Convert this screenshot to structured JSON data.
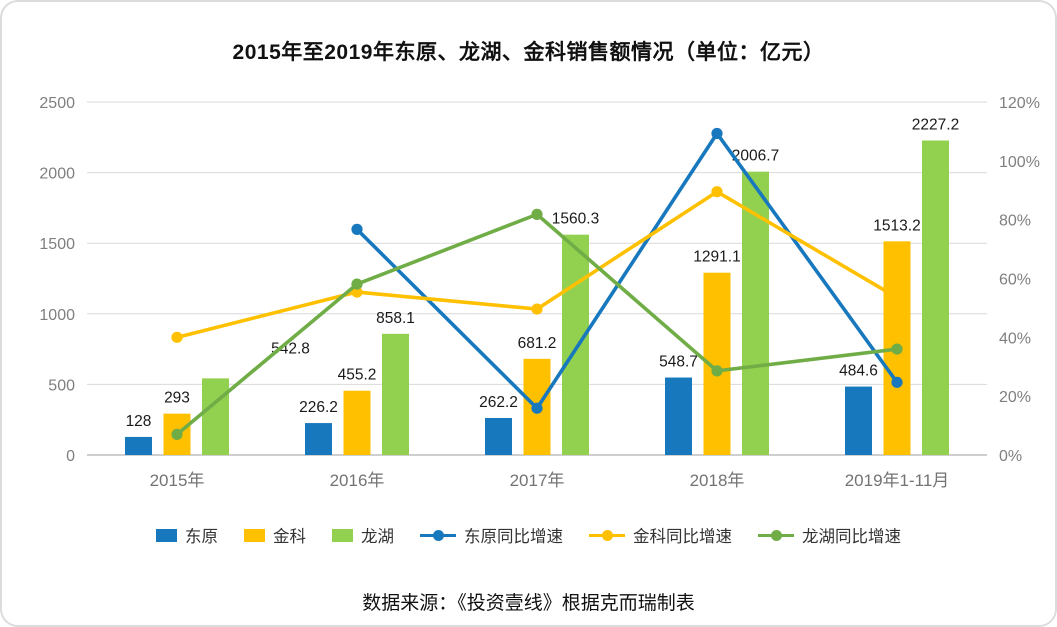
{
  "title": "2015年至2019年东原、龙湖、金科销售额情况（单位：亿元）",
  "caption": "数据来源：《投资壹线》根据克而瑞制表",
  "colors": {
    "dongyuan": "#1878be",
    "jinke": "#ffc000",
    "longhu_bar": "#92d050",
    "longhu_line": "#70ad47",
    "grid": "#d9d9d9",
    "axis_line": "#bfbfbf"
  },
  "chart_data": {
    "type": "bar+line",
    "title": "2015年至2019年东原、龙湖、金科销售额情况（单位：亿元）",
    "categories": [
      "2015年",
      "2016年",
      "2017年",
      "2018年",
      "2019年1-11月"
    ],
    "bar_series": [
      {
        "name": "东原",
        "color_key": "dongyuan",
        "values": [
          128,
          226.2,
          262.2,
          548.7,
          484.6
        ]
      },
      {
        "name": "金科",
        "color_key": "jinke",
        "values": [
          293,
          455.2,
          681.2,
          1291.1,
          1513.2
        ]
      },
      {
        "name": "龙湖",
        "color_key": "longhu_bar",
        "values": [
          542.8,
          858.1,
          1560.3,
          2006.7,
          2227.2
        ]
      }
    ],
    "line_series": [
      {
        "name": "东原同比增速",
        "color_key": "dongyuan",
        "values": [
          null,
          76.7,
          15.9,
          109.3,
          24.7
        ]
      },
      {
        "name": "金科同比增速",
        "color_key": "jinke",
        "values": [
          40,
          55.4,
          49.6,
          89.5,
          53.5
        ]
      },
      {
        "name": "龙湖同比增速",
        "color_key": "longhu_line",
        "values": [
          7,
          58.1,
          81.8,
          28.6,
          36
        ]
      }
    ],
    "y_left": {
      "min": 0,
      "max": 2500,
      "step": 500,
      "ticks": [
        "0",
        "500",
        "1000",
        "1500",
        "2000",
        "2500"
      ]
    },
    "y_right": {
      "min": 0,
      "max": 120,
      "step": 20,
      "ticks": [
        "0%",
        "20%",
        "40%",
        "60%",
        "80%",
        "100%",
        "120%"
      ]
    },
    "grid": true,
    "legend_position": "bottom",
    "label_offsets": {
      "2": {
        "0": [
          75,
          -14
        ]
      }
    }
  },
  "legend": {
    "items": [
      {
        "label": "东原",
        "type": "bar",
        "color_key": "dongyuan"
      },
      {
        "label": "金科",
        "type": "bar",
        "color_key": "jinke"
      },
      {
        "label": "龙湖",
        "type": "bar",
        "color_key": "longhu_bar"
      },
      {
        "label": "东原同比增速",
        "type": "line",
        "color_key": "dongyuan"
      },
      {
        "label": "金科同比增速",
        "type": "line",
        "color_key": "jinke"
      },
      {
        "label": "龙湖同比增速",
        "type": "line",
        "color_key": "longhu_line"
      }
    ]
  }
}
